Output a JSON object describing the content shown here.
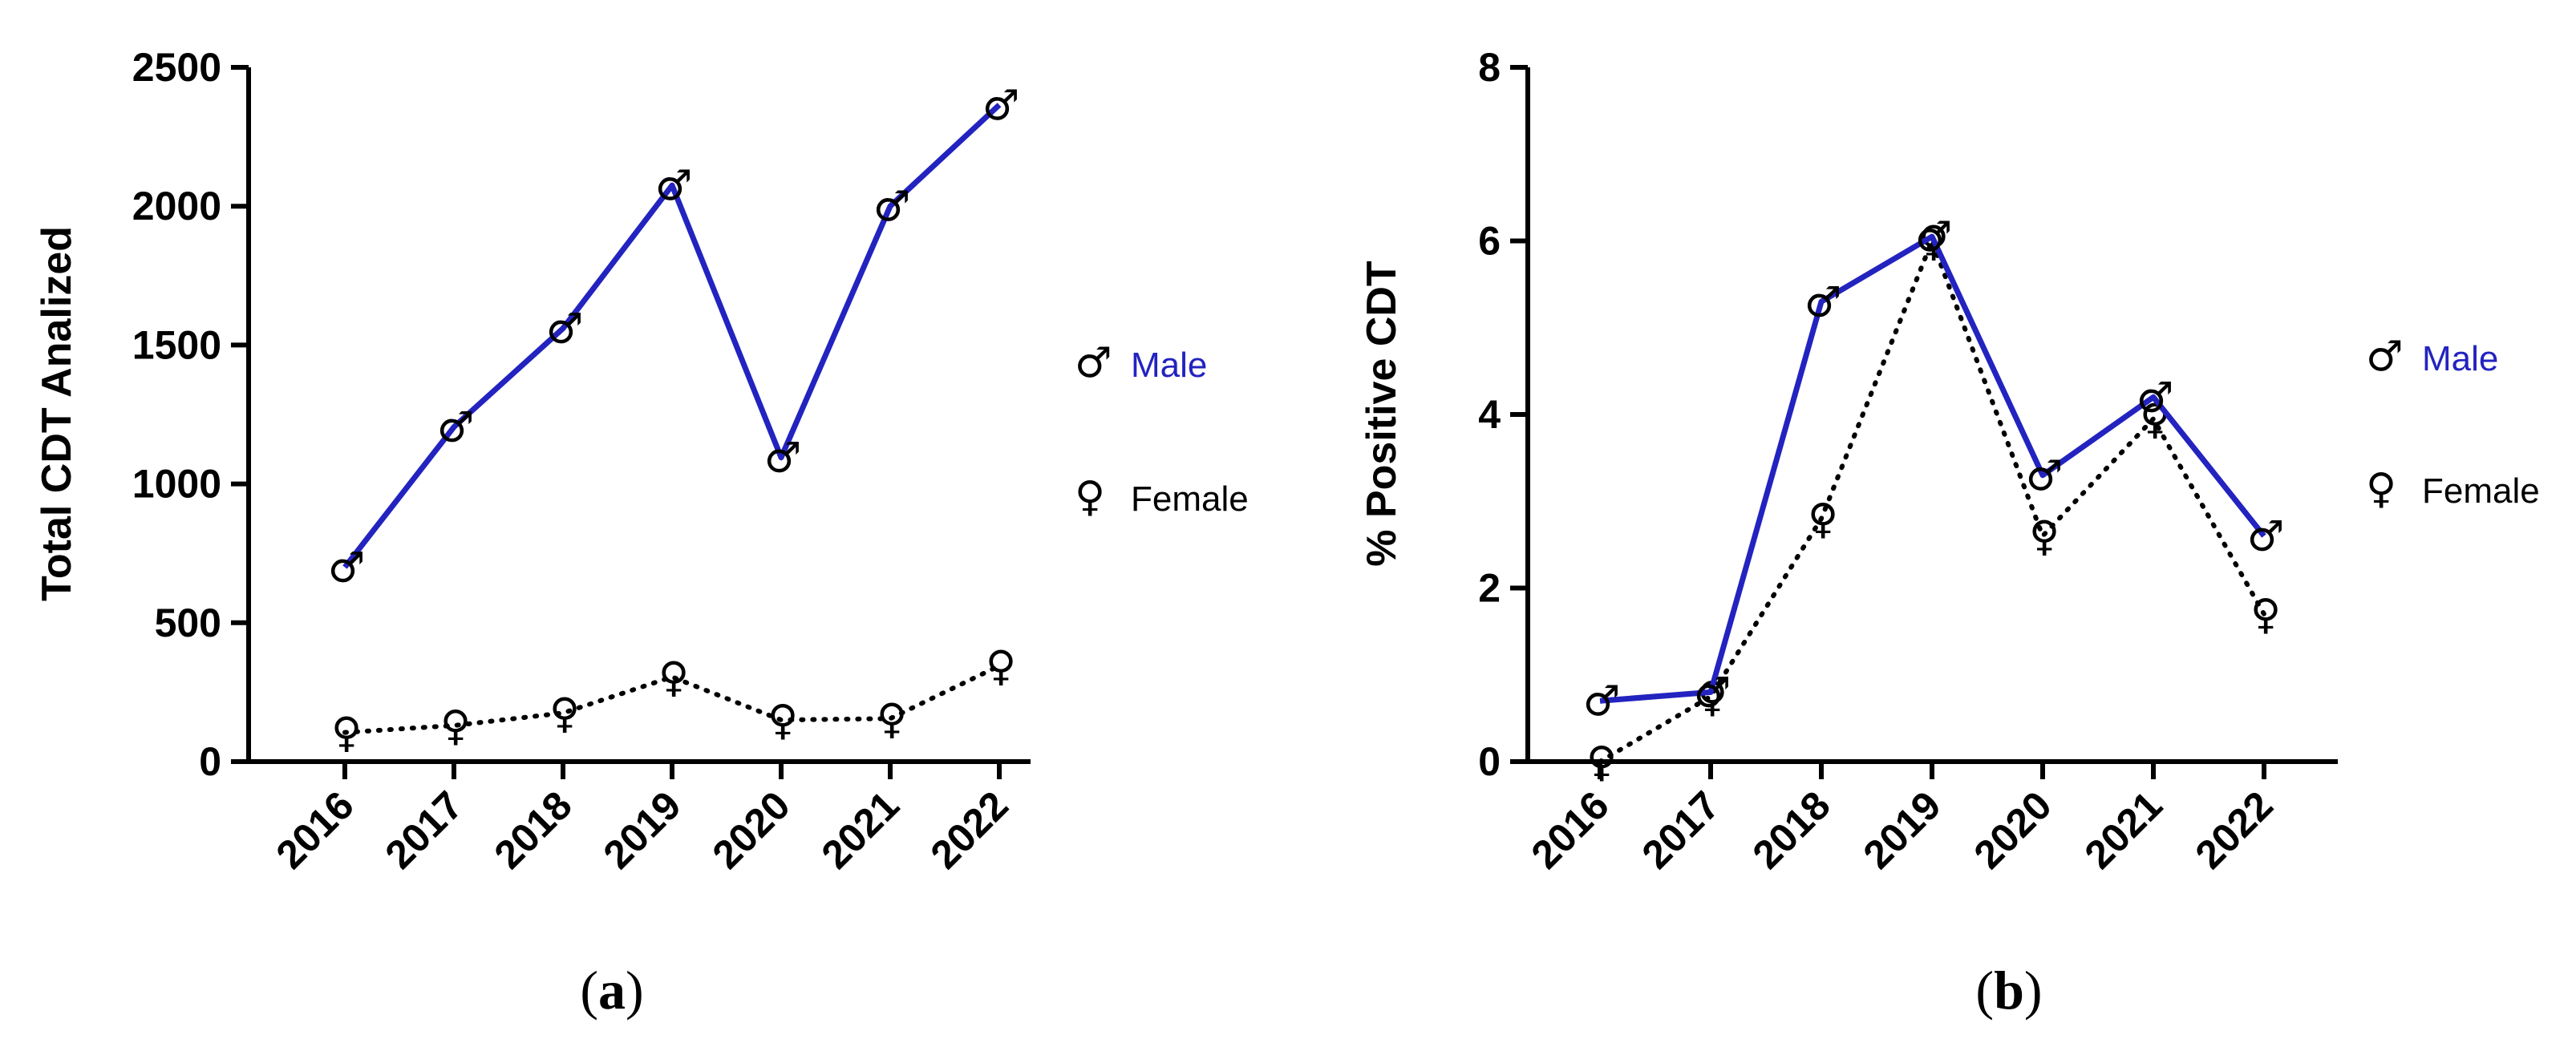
{
  "colors": {
    "male": "#2323c0",
    "female": "#000000",
    "axis": "#000000"
  },
  "symbols": {
    "male": "♂",
    "female": "♀"
  },
  "chart_data": [
    {
      "type": "line",
      "panel_label": "a",
      "title": "",
      "xlabel": "",
      "ylabel": "Total CDT Analized",
      "categories": [
        "2016",
        "2017",
        "2018",
        "2019",
        "2020",
        "2021",
        "2022"
      ],
      "ylim": [
        0,
        2500
      ],
      "yticks": [
        0,
        500,
        1000,
        1500,
        2000,
        2500
      ],
      "series": [
        {
          "name": "Male",
          "values": [
            700,
            1205,
            1560,
            2075,
            1095,
            2000,
            2365
          ]
        },
        {
          "name": "Female",
          "values": [
            105,
            130,
            175,
            305,
            150,
            155,
            345
          ]
        }
      ],
      "legend": [
        "Male",
        "Female"
      ]
    },
    {
      "type": "line",
      "panel_label": "b",
      "title": "",
      "xlabel": "",
      "ylabel": "% Positive CDT",
      "categories": [
        "2016",
        "2017",
        "2018",
        "2019",
        "2020",
        "2021",
        "2022"
      ],
      "ylim": [
        0,
        8
      ],
      "yticks": [
        0,
        2,
        4,
        6,
        8
      ],
      "series": [
        {
          "name": "Male",
          "values": [
            0.7,
            0.8,
            5.3,
            6.05,
            3.3,
            4.2,
            2.6
          ]
        },
        {
          "name": "Female",
          "values": [
            0.0,
            0.75,
            2.8,
            6.0,
            2.6,
            3.95,
            1.7
          ]
        }
      ],
      "legend": [
        "Male",
        "Female"
      ]
    }
  ]
}
